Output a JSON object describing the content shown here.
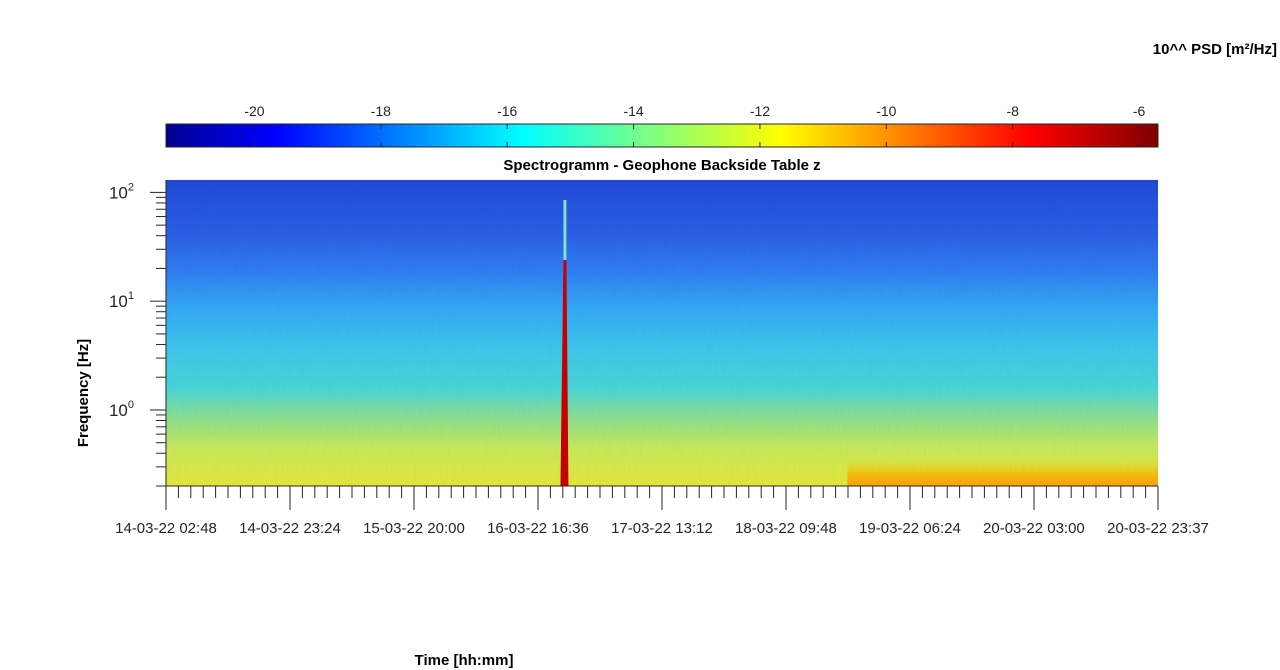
{
  "chart_data": {
    "type": "heatmap",
    "title": "Spectrogramm - Geophone Backside Table z",
    "xlabel": "Time [hh:mm]",
    "ylabel": "Frequency [Hz]",
    "colorbar_label": "10^^ PSD [m²/Hz]",
    "colormap": "jet",
    "clim": [
      -21.4,
      -5.7
    ],
    "colorbar_ticks": [
      -20,
      -18,
      -16,
      -14,
      -12,
      -10,
      -8,
      -6
    ],
    "x_tick_labels": [
      "14-03-22 02:48",
      "14-03-22 23:24",
      "15-03-22 20:00",
      "16-03-22 16:36",
      "17-03-22 13:12",
      "18-03-22 09:48",
      "19-03-22 06:24",
      "20-03-22 03:00",
      "20-03-22 23:37"
    ],
    "xlim": [
      "14-03-22 02:48",
      "20-03-22 23:37"
    ],
    "y_scale": "log",
    "y_tick_labels": [
      {
        "base": "10",
        "exp": "0",
        "value": 1
      },
      {
        "base": "10",
        "exp": "1",
        "value": 10
      },
      {
        "base": "10",
        "exp": "2",
        "value": 100
      }
    ],
    "ylim": [
      0.2,
      130
    ],
    "features": [
      {
        "description_value": "strong broadband event",
        "time": "16-03-22 21:00",
        "psd_log10": -6
      },
      {
        "description_value": "low-frequency increase",
        "time_start": "18-03-22 20:00",
        "time_end": "20-03-22 23:37",
        "freq_max": 0.35,
        "psd_log10": -10.5
      }
    ]
  },
  "colors": {
    "axis": "#262626",
    "background": "#ffffff"
  }
}
